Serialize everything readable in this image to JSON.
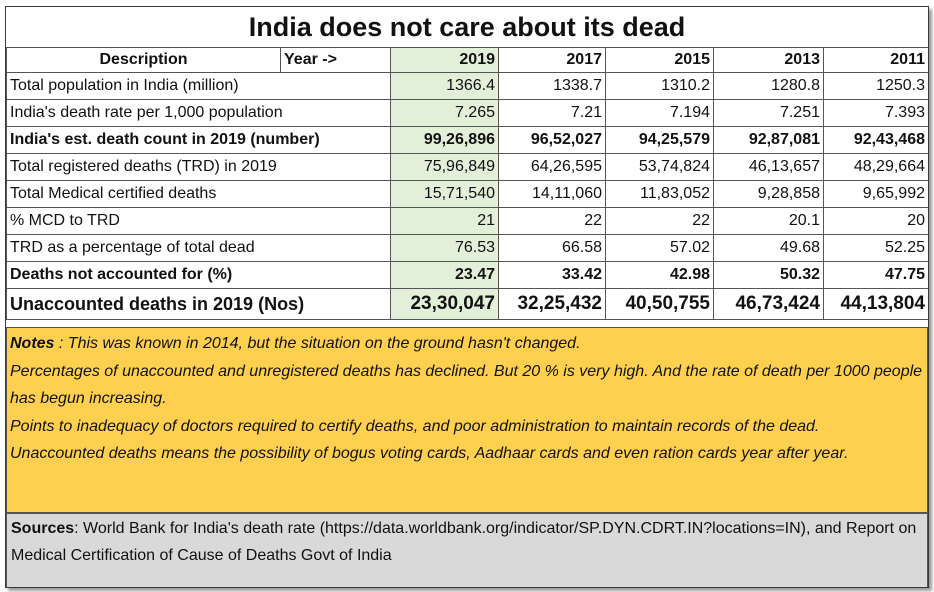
{
  "title": "India does not care about its dead",
  "header": {
    "description": "Description",
    "year": "Year ->",
    "years": [
      "2019",
      "2017",
      "2015",
      "2013",
      "2011"
    ]
  },
  "rows": [
    {
      "label": "Total population in India  (million)",
      "values": [
        "1366.4",
        "1338.7",
        "1310.2",
        "1280.8",
        "1250.3"
      ],
      "style": "normal"
    },
    {
      "label": "India's death rate per 1,000 population",
      "values": [
        "7.265",
        "7.21",
        "7.194",
        "7.251",
        "7.393"
      ],
      "style": "normal"
    },
    {
      "label": "India's est. death count in 2019 (number)",
      "values": [
        "99,26,896",
        "96,52,027",
        "94,25,579",
        "92,87,081",
        "92,43,468"
      ],
      "style": "bold"
    },
    {
      "label": "Total registered deaths (TRD) in 2019",
      "values": [
        "75,96,849",
        "64,26,595",
        "53,74,824",
        "46,13,657",
        "48,29,664"
      ],
      "style": "normal"
    },
    {
      "label": "Total Medical certified deaths",
      "values": [
        "15,71,540",
        "14,11,060",
        "11,83,052",
        "9,28,858",
        "9,65,992"
      ],
      "style": "normal"
    },
    {
      "label": "% MCD to TRD",
      "values": [
        "21",
        "22",
        "22",
        "20.1",
        "20"
      ],
      "style": "normal"
    },
    {
      "label": "TRD as a percentage of total dead",
      "values": [
        "76.53",
        "66.58",
        "57.02",
        "49.68",
        "52.25"
      ],
      "style": "normal"
    },
    {
      "label": "Deaths not accounted for (%)",
      "values": [
        "23.47",
        "33.42",
        "42.98",
        "50.32",
        "47.75"
      ],
      "style": "bold"
    },
    {
      "label": "Unaccounted deaths in 2019 (Nos)",
      "values": [
        "23,30,047",
        "32,25,432",
        "40,50,755",
        "46,73,424",
        "44,13,804"
      ],
      "style": "big"
    }
  ],
  "notes": {
    "label": "Notes",
    "line1": " : This was known in 2014, but the situation on the ground hasn't changed.",
    "line2": "Percentages of unaccounted and unregistered deaths has declined.  But 20 % is very high. And the rate of death per 1000 people has begun increasing.",
    "line3": "Points to inadequacy of doctors required to certify deaths, and poor administration to maintain records of the dead.",
    "line4": "Unaccounted deaths means the possibility of bogus voting cards, Aadhaar cards and even ration cards year after year."
  },
  "sources": {
    "label": "Sources",
    "text": ": World Bank for India's death rate (https://data.worldbank.org/indicator/SP.DYN.CDRT.IN?locations=IN), and Report on Medical Certification of Cause of Deaths   Govt of India"
  }
}
